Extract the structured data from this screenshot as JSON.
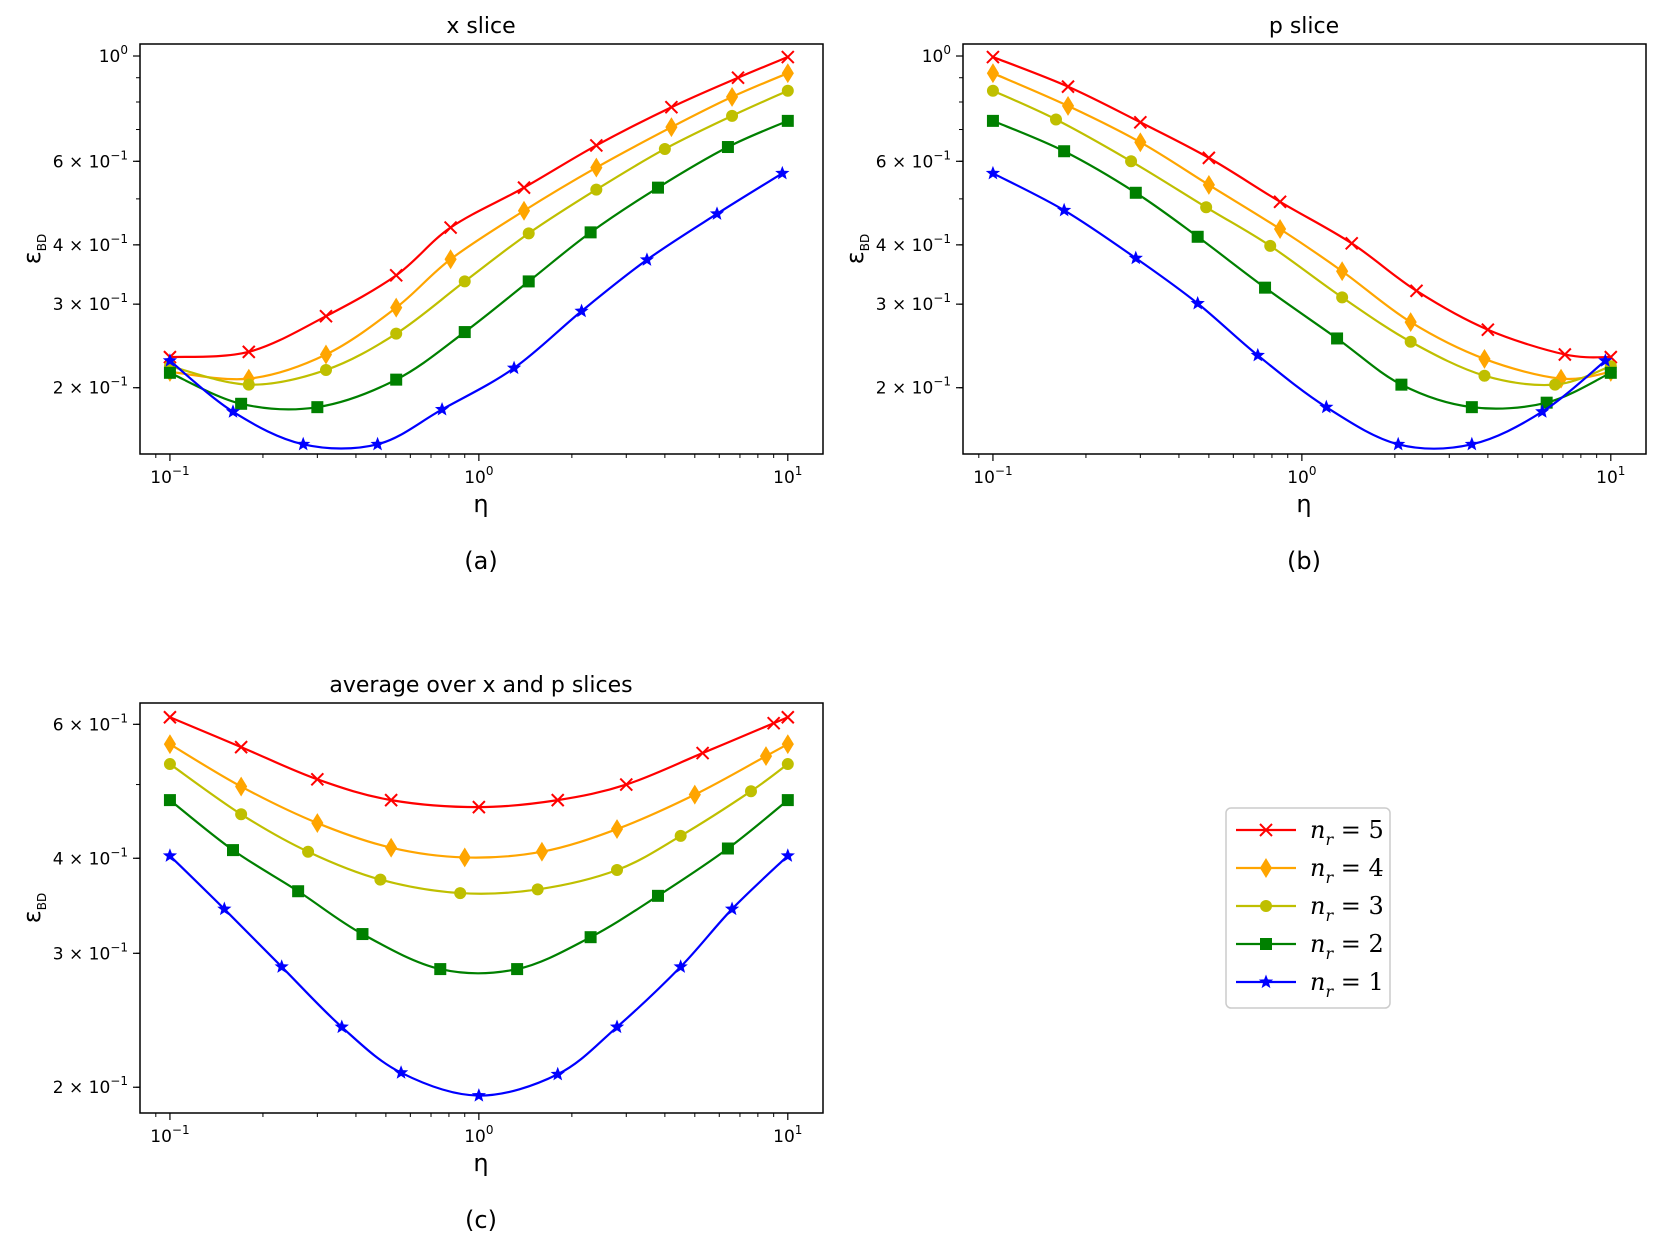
{
  "figure": {
    "caption_labels": [
      "(a)",
      "(b)",
      "(c)"
    ]
  },
  "chart_data": [
    {
      "type": "line",
      "title": "x slice",
      "xlabel": "η",
      "ylabel": "ε",
      "ylabel_sub": "BD",
      "xscale": "log",
      "yscale": "log",
      "xlim": [
        0.08,
        13
      ],
      "ylim": [
        0.145,
        1.06
      ],
      "xticks": [
        {
          "value": 0.1,
          "base": "10",
          "exp": "−1"
        },
        {
          "value": 1,
          "base": "10",
          "exp": "0"
        },
        {
          "value": 10,
          "base": "10",
          "exp": "1"
        }
      ],
      "yticks": [
        {
          "value": 1.0,
          "mant": "",
          "base": "10",
          "exp": "0"
        },
        {
          "value": 0.6,
          "mant": "6 × ",
          "base": "10",
          "exp": "−1"
        },
        {
          "value": 0.4,
          "mant": "4 × ",
          "base": "10",
          "exp": "−1"
        },
        {
          "value": 0.3,
          "mant": "3 × ",
          "base": "10",
          "exp": "−1"
        },
        {
          "value": 0.2,
          "mant": "2 × ",
          "base": "10",
          "exp": "−1"
        }
      ],
      "series": [
        {
          "name": "n_r = 5",
          "x": [
            0.1,
            0.18,
            0.32,
            0.54,
            0.81,
            1.4,
            2.4,
            4.2,
            6.9,
            10
          ],
          "y": [
            0.232,
            0.238,
            0.283,
            0.345,
            0.435,
            0.528,
            0.648,
            0.78,
            0.9,
            0.995
          ]
        },
        {
          "name": "n_r = 4",
          "x": [
            0.1,
            0.18,
            0.32,
            0.54,
            0.81,
            1.4,
            2.4,
            4.2,
            6.6,
            10
          ],
          "y": [
            0.216,
            0.209,
            0.235,
            0.295,
            0.373,
            0.472,
            0.582,
            0.708,
            0.82,
            0.92
          ]
        },
        {
          "name": "n_r = 3",
          "x": [
            0.1,
            0.18,
            0.32,
            0.54,
            0.9,
            1.45,
            2.4,
            4.0,
            6.6,
            10
          ],
          "y": [
            0.222,
            0.203,
            0.218,
            0.26,
            0.335,
            0.423,
            0.523,
            0.637,
            0.748,
            0.845
          ]
        },
        {
          "name": "n_r = 2",
          "x": [
            0.1,
            0.17,
            0.3,
            0.54,
            0.9,
            1.45,
            2.3,
            3.8,
            6.4,
            10
          ],
          "y": [
            0.215,
            0.185,
            0.182,
            0.208,
            0.262,
            0.335,
            0.425,
            0.528,
            0.643,
            0.73
          ]
        },
        {
          "name": "n_r = 1",
          "x": [
            0.1,
            0.16,
            0.27,
            0.47,
            0.76,
            1.3,
            2.15,
            3.5,
            5.9,
            9.6
          ],
          "y": [
            0.228,
            0.178,
            0.152,
            0.152,
            0.18,
            0.22,
            0.29,
            0.372,
            0.465,
            0.566
          ]
        }
      ]
    },
    {
      "type": "line",
      "title": "p slice",
      "xlabel": "η",
      "ylabel": "ε",
      "ylabel_sub": "BD",
      "xscale": "log",
      "yscale": "log",
      "xlim": [
        0.08,
        13
      ],
      "ylim": [
        0.145,
        1.06
      ],
      "xticks": [
        {
          "value": 0.1,
          "base": "10",
          "exp": "−1"
        },
        {
          "value": 1,
          "base": "10",
          "exp": "0"
        },
        {
          "value": 10,
          "base": "10",
          "exp": "1"
        }
      ],
      "yticks": [
        {
          "value": 1.0,
          "mant": "",
          "base": "10",
          "exp": "0"
        },
        {
          "value": 0.6,
          "mant": "6 × ",
          "base": "10",
          "exp": "−1"
        },
        {
          "value": 0.4,
          "mant": "4 × ",
          "base": "10",
          "exp": "−1"
        },
        {
          "value": 0.3,
          "mant": "3 × ",
          "base": "10",
          "exp": "−1"
        },
        {
          "value": 0.2,
          "mant": "2 × ",
          "base": "10",
          "exp": "−1"
        }
      ],
      "series": [
        {
          "name": "n_r = 5",
          "x": [
            0.1,
            0.175,
            0.3,
            0.5,
            0.85,
            1.45,
            2.35,
            4.0,
            7.1,
            10
          ],
          "y": [
            0.995,
            0.862,
            0.725,
            0.61,
            0.493,
            0.403,
            0.32,
            0.265,
            0.235,
            0.232
          ]
        },
        {
          "name": "n_r = 4",
          "x": [
            0.1,
            0.175,
            0.3,
            0.5,
            0.85,
            1.35,
            2.25,
            3.9,
            6.9,
            10
          ],
          "y": [
            0.92,
            0.785,
            0.658,
            0.535,
            0.432,
            0.352,
            0.275,
            0.23,
            0.209,
            0.216
          ]
        },
        {
          "name": "n_r = 3",
          "x": [
            0.1,
            0.16,
            0.28,
            0.49,
            0.79,
            1.35,
            2.25,
            3.9,
            6.6,
            10
          ],
          "y": [
            0.845,
            0.735,
            0.6,
            0.48,
            0.398,
            0.31,
            0.25,
            0.212,
            0.203,
            0.222
          ]
        },
        {
          "name": "n_r = 2",
          "x": [
            0.1,
            0.17,
            0.29,
            0.46,
            0.76,
            1.3,
            2.1,
            3.55,
            6.2,
            10
          ],
          "y": [
            0.73,
            0.63,
            0.515,
            0.416,
            0.325,
            0.254,
            0.203,
            0.182,
            0.186,
            0.215
          ]
        },
        {
          "name": "n_r = 1",
          "x": [
            0.1,
            0.17,
            0.29,
            0.46,
            0.72,
            1.2,
            2.05,
            3.55,
            6.0,
            9.6
          ],
          "y": [
            0.566,
            0.473,
            0.375,
            0.301,
            0.234,
            0.182,
            0.152,
            0.152,
            0.178,
            0.228
          ]
        }
      ]
    },
    {
      "type": "line",
      "title": "average over x and p slices",
      "xlabel": "η",
      "ylabel": "ε",
      "ylabel_sub": "BD",
      "xscale": "log",
      "yscale": "log",
      "xlim": [
        0.08,
        13
      ],
      "ylim": [
        0.185,
        0.64
      ],
      "xticks": [
        {
          "value": 0.1,
          "base": "10",
          "exp": "−1"
        },
        {
          "value": 1,
          "base": "10",
          "exp": "0"
        },
        {
          "value": 10,
          "base": "10",
          "exp": "1"
        }
      ],
      "yticks": [
        {
          "value": 0.6,
          "mant": "6 × ",
          "base": "10",
          "exp": "−1"
        },
        {
          "value": 0.4,
          "mant": "4 × ",
          "base": "10",
          "exp": "−1"
        },
        {
          "value": 0.3,
          "mant": "3 × ",
          "base": "10",
          "exp": "−1"
        },
        {
          "value": 0.2,
          "mant": "2 × ",
          "base": "10",
          "exp": "−1"
        }
      ],
      "series": [
        {
          "name": "n_r = 5",
          "x": [
            0.1,
            0.17,
            0.3,
            0.52,
            1.0,
            1.8,
            3.0,
            5.3,
            9.0,
            10
          ],
          "y": [
            0.613,
            0.56,
            0.508,
            0.477,
            0.467,
            0.477,
            0.5,
            0.55,
            0.602,
            0.613
          ]
        },
        {
          "name": "n_r = 4",
          "x": [
            0.1,
            0.17,
            0.3,
            0.52,
            0.9,
            1.6,
            2.8,
            5.0,
            8.5,
            10
          ],
          "y": [
            0.565,
            0.497,
            0.445,
            0.413,
            0.401,
            0.408,
            0.437,
            0.485,
            0.545,
            0.565
          ]
        },
        {
          "name": "n_r = 3",
          "x": [
            0.1,
            0.17,
            0.28,
            0.48,
            0.87,
            1.55,
            2.8,
            4.5,
            7.6,
            10
          ],
          "y": [
            0.532,
            0.457,
            0.408,
            0.375,
            0.36,
            0.364,
            0.386,
            0.428,
            0.49,
            0.532
          ]
        },
        {
          "name": "n_r = 2",
          "x": [
            0.1,
            0.16,
            0.26,
            0.42,
            0.75,
            1.33,
            2.3,
            3.8,
            6.4,
            10
          ],
          "y": [
            0.477,
            0.41,
            0.362,
            0.318,
            0.286,
            0.286,
            0.315,
            0.357,
            0.412,
            0.477
          ]
        },
        {
          "name": "n_r = 1",
          "x": [
            0.1,
            0.15,
            0.23,
            0.36,
            0.56,
            1.0,
            1.8,
            2.8,
            4.5,
            6.6,
            10
          ],
          "y": [
            0.403,
            0.343,
            0.288,
            0.24,
            0.209,
            0.195,
            0.208,
            0.24,
            0.288,
            0.343,
            0.403
          ]
        }
      ]
    }
  ],
  "legend": {
    "entries": [
      {
        "base": "n",
        "sub": "r",
        "eq": " = 5",
        "color": "#ff0000",
        "marker": "x"
      },
      {
        "base": "n",
        "sub": "r",
        "eq": " = 4",
        "color": "#ffa500",
        "marker": "diamond"
      },
      {
        "base": "n",
        "sub": "r",
        "eq": " = 3",
        "color": "#bfbf00",
        "marker": "circle"
      },
      {
        "base": "n",
        "sub": "r",
        "eq": " = 2",
        "color": "#008000",
        "marker": "square"
      },
      {
        "base": "n",
        "sub": "r",
        "eq": " = 1",
        "color": "#0000ff",
        "marker": "star"
      }
    ]
  }
}
